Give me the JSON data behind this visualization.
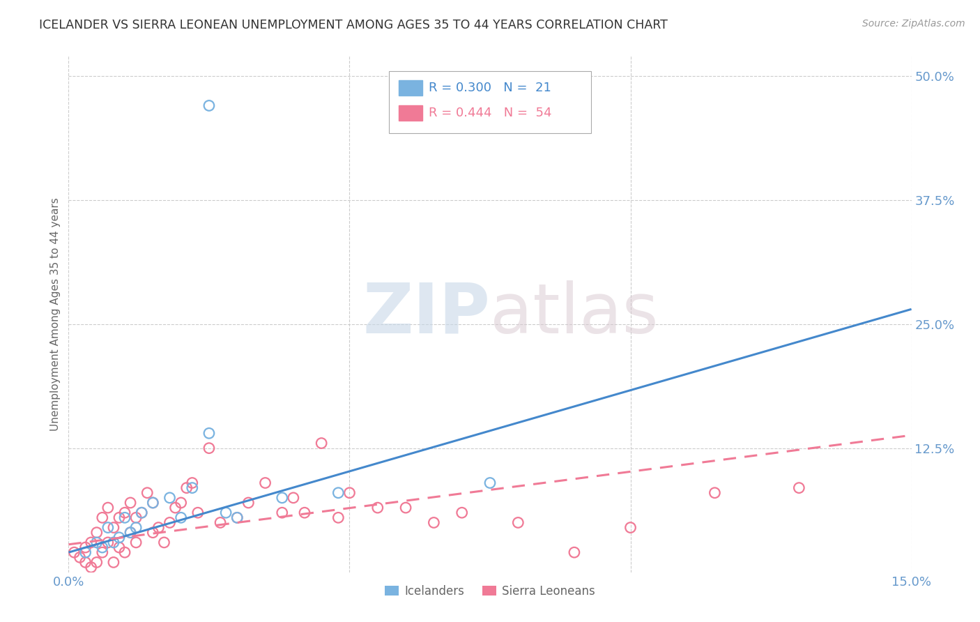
{
  "title": "ICELANDER VS SIERRA LEONEAN UNEMPLOYMENT AMONG AGES 35 TO 44 YEARS CORRELATION CHART",
  "source": "Source: ZipAtlas.com",
  "ylabel_label": "Unemployment Among Ages 35 to 44 years",
  "right_ytick_vals": [
    0.5,
    0.375,
    0.25,
    0.125
  ],
  "right_ytick_labels": [
    "50.0%",
    "37.5%",
    "25.0%",
    "12.5%"
  ],
  "xlim": [
    0.0,
    0.15
  ],
  "ylim": [
    0.0,
    0.52
  ],
  "watermark_zip": "ZIP",
  "watermark_atlas": "atlas",
  "blue_label": "Icelanders",
  "pink_label": "Sierra Leoneans",
  "blue_R": "R = 0.300",
  "blue_N": "N =  21",
  "pink_R": "R = 0.444",
  "pink_N": "N =  54",
  "blue_color": "#7ab3e0",
  "pink_color": "#f07a96",
  "blue_trend_color": "#4488cc",
  "pink_trend_color": "#f07a96",
  "blue_scatter_x": [
    0.003,
    0.005,
    0.006,
    0.007,
    0.008,
    0.009,
    0.01,
    0.011,
    0.012,
    0.013,
    0.015,
    0.018,
    0.02,
    0.022,
    0.025,
    0.028,
    0.03,
    0.038,
    0.048,
    0.075,
    0.025
  ],
  "blue_scatter_y": [
    0.02,
    0.03,
    0.025,
    0.045,
    0.03,
    0.035,
    0.055,
    0.04,
    0.045,
    0.06,
    0.07,
    0.075,
    0.055,
    0.085,
    0.14,
    0.06,
    0.055,
    0.075,
    0.08,
    0.09,
    0.47
  ],
  "pink_scatter_x": [
    0.001,
    0.002,
    0.003,
    0.003,
    0.004,
    0.004,
    0.005,
    0.005,
    0.006,
    0.006,
    0.007,
    0.007,
    0.008,
    0.008,
    0.009,
    0.009,
    0.01,
    0.01,
    0.011,
    0.011,
    0.012,
    0.012,
    0.013,
    0.014,
    0.015,
    0.015,
    0.016,
    0.017,
    0.018,
    0.019,
    0.02,
    0.021,
    0.022,
    0.023,
    0.025,
    0.027,
    0.03,
    0.032,
    0.035,
    0.038,
    0.04,
    0.042,
    0.045,
    0.048,
    0.05,
    0.055,
    0.06,
    0.065,
    0.07,
    0.08,
    0.09,
    0.1,
    0.115,
    0.13
  ],
  "pink_scatter_y": [
    0.02,
    0.015,
    0.025,
    0.01,
    0.03,
    0.005,
    0.04,
    0.01,
    0.055,
    0.02,
    0.065,
    0.03,
    0.045,
    0.01,
    0.055,
    0.025,
    0.06,
    0.02,
    0.07,
    0.04,
    0.055,
    0.03,
    0.06,
    0.08,
    0.07,
    0.04,
    0.045,
    0.03,
    0.05,
    0.065,
    0.07,
    0.085,
    0.09,
    0.06,
    0.125,
    0.05,
    0.055,
    0.07,
    0.09,
    0.06,
    0.075,
    0.06,
    0.13,
    0.055,
    0.08,
    0.065,
    0.065,
    0.05,
    0.06,
    0.05,
    0.02,
    0.045,
    0.08,
    0.085
  ],
  "blue_trend_x": [
    0.0,
    0.15
  ],
  "blue_trend_y": [
    0.02,
    0.265
  ],
  "pink_trend_x": [
    0.0,
    0.15
  ],
  "pink_trend_y": [
    0.028,
    0.138
  ],
  "background_color": "#ffffff",
  "grid_color": "#cccccc",
  "title_color": "#333333",
  "tick_color": "#6699cc",
  "legend_box_color": "#f5f5ff"
}
